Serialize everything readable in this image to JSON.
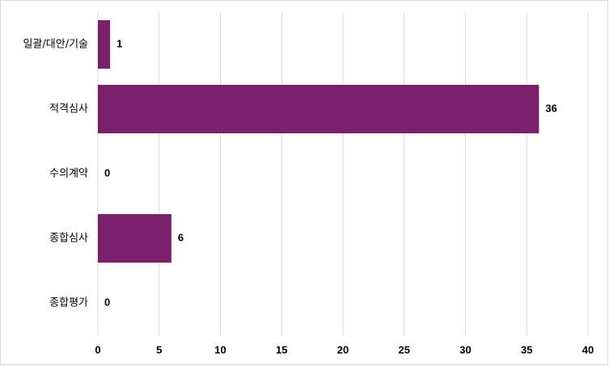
{
  "chart_data": {
    "type": "bar",
    "orientation": "horizontal",
    "categories": [
      "일괄/대안/기술",
      "적격심사",
      "수의계약",
      "종합심사",
      "종합평가"
    ],
    "values": [
      1,
      36,
      0,
      6,
      0
    ],
    "color": "#7a1f6a",
    "xlim": [
      0,
      40
    ],
    "xticks": [
      0,
      5,
      10,
      15,
      20,
      25,
      30,
      35,
      40
    ],
    "grid": true
  }
}
